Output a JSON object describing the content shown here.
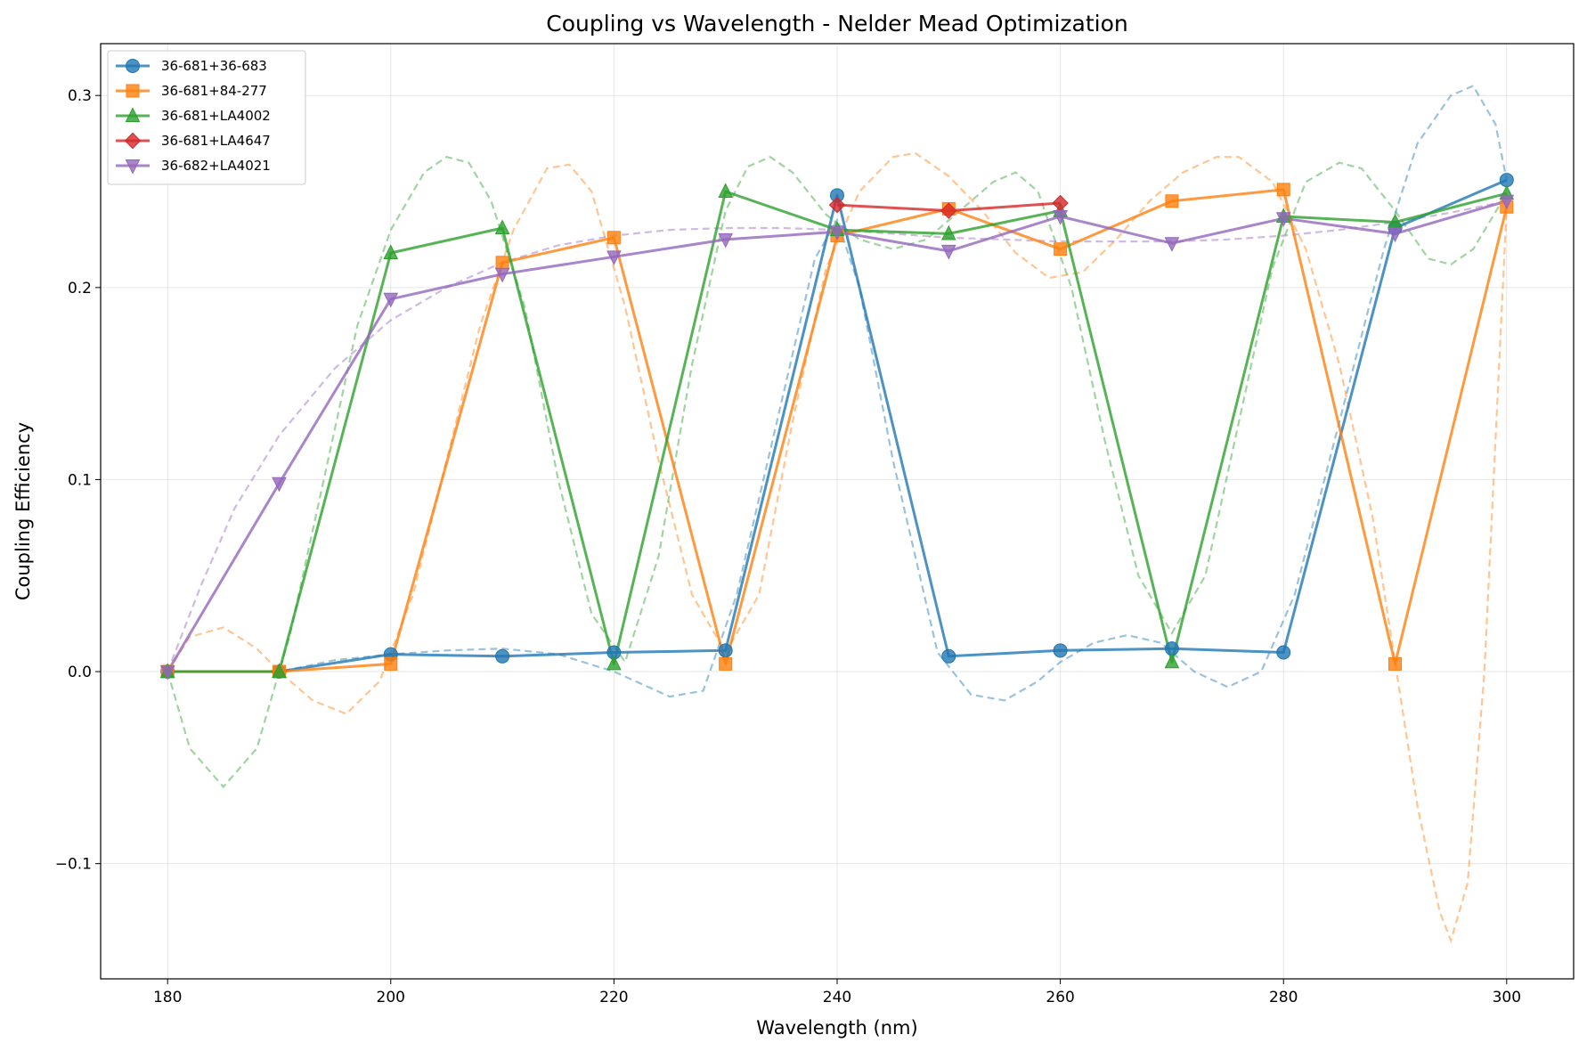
{
  "chart_data": {
    "type": "line",
    "title": "Coupling vs Wavelength - Nelder Mead Optimization",
    "xlabel": "Wavelength (nm)",
    "ylabel": "Coupling Efficiency",
    "xlim": [
      174,
      306
    ],
    "ylim": [
      -0.16,
      0.327
    ],
    "xticks": [
      180,
      200,
      220,
      240,
      260,
      280,
      300
    ],
    "yticks": [
      -0.1,
      0.0,
      0.1,
      0.2,
      0.3
    ],
    "ytick_labels": [
      "−0.1",
      "0.0",
      "0.1",
      "0.2",
      "0.3"
    ],
    "grid": true,
    "legend_position": "top-left",
    "series": [
      {
        "name": "36-681+36-683",
        "color": "#1f77b4",
        "marker": "circle",
        "x": [
          180,
          190,
          200,
          210,
          220,
          230,
          240,
          250,
          260,
          270,
          280,
          290,
          300
        ],
        "values": [
          0.0,
          0.0,
          0.009,
          0.008,
          0.01,
          0.011,
          0.248,
          0.008,
          0.011,
          0.012,
          0.01,
          0.231,
          0.256
        ],
        "fit": [
          [
            180,
            0.0
          ],
          [
            190,
            0.0
          ],
          [
            195,
            0.006
          ],
          [
            200,
            0.009
          ],
          [
            205,
            0.011
          ],
          [
            210,
            0.012
          ],
          [
            215,
            0.009
          ],
          [
            220,
            0.0
          ],
          [
            225,
            -0.013
          ],
          [
            228,
            -0.01
          ],
          [
            231,
            0.04
          ],
          [
            235,
            0.14
          ],
          [
            238,
            0.215
          ],
          [
            240,
            0.235
          ],
          [
            242,
            0.2
          ],
          [
            245,
            0.11
          ],
          [
            249,
            0.01
          ],
          [
            252,
            -0.012
          ],
          [
            255,
            -0.015
          ],
          [
            258,
            -0.005
          ],
          [
            260,
            0.005
          ],
          [
            263,
            0.015
          ],
          [
            266,
            0.019
          ],
          [
            269,
            0.015
          ],
          [
            272,
            0.0
          ],
          [
            275,
            -0.008
          ],
          [
            278,
            0.0
          ],
          [
            281,
            0.04
          ],
          [
            285,
            0.13
          ],
          [
            289,
            0.22
          ],
          [
            292,
            0.275
          ],
          [
            295,
            0.3
          ],
          [
            297,
            0.305
          ],
          [
            299,
            0.285
          ],
          [
            300,
            0.256
          ]
        ]
      },
      {
        "name": "36-681+84-277",
        "color": "#ff7f0e",
        "marker": "square",
        "x": [
          180,
          190,
          200,
          210,
          220,
          230,
          240,
          250,
          260,
          270,
          280,
          290,
          300
        ],
        "values": [
          0.0,
          0.0,
          0.004,
          0.213,
          0.226,
          0.004,
          0.227,
          0.241,
          0.22,
          0.245,
          0.251,
          0.004,
          0.242
        ],
        "fit": [
          [
            180,
            0.0
          ],
          [
            182,
            0.018
          ],
          [
            185,
            0.023
          ],
          [
            188,
            0.012
          ],
          [
            190,
            0.0
          ],
          [
            193,
            -0.015
          ],
          [
            196,
            -0.022
          ],
          [
            199,
            -0.005
          ],
          [
            202,
            0.04
          ],
          [
            205,
            0.11
          ],
          [
            208,
            0.18
          ],
          [
            211,
            0.23
          ],
          [
            214,
            0.262
          ],
          [
            216,
            0.264
          ],
          [
            218,
            0.25
          ],
          [
            221,
            0.19
          ],
          [
            224,
            0.11
          ],
          [
            227,
            0.04
          ],
          [
            230,
            0.01
          ],
          [
            233,
            0.04
          ],
          [
            236,
            0.13
          ],
          [
            239,
            0.21
          ],
          [
            242,
            0.25
          ],
          [
            245,
            0.268
          ],
          [
            247,
            0.27
          ],
          [
            250,
            0.258
          ],
          [
            253,
            0.24
          ],
          [
            256,
            0.218
          ],
          [
            259,
            0.205
          ],
          [
            262,
            0.208
          ],
          [
            265,
            0.225
          ],
          [
            268,
            0.245
          ],
          [
            271,
            0.26
          ],
          [
            274,
            0.268
          ],
          [
            276,
            0.268
          ],
          [
            279,
            0.255
          ],
          [
            282,
            0.22
          ],
          [
            285,
            0.16
          ],
          [
            288,
            0.08
          ],
          [
            290,
            0.005
          ],
          [
            292,
            -0.07
          ],
          [
            294,
            -0.125
          ],
          [
            295,
            -0.14
          ],
          [
            296.5,
            -0.11
          ],
          [
            298,
            0.0
          ],
          [
            300,
            0.242
          ]
        ]
      },
      {
        "name": "36-681+LA4002",
        "color": "#2ca02c",
        "marker": "triangle-up",
        "x": [
          180,
          190,
          200,
          210,
          220,
          230,
          240,
          250,
          260,
          270,
          280,
          290,
          300
        ],
        "values": [
          0.0,
          0.0,
          0.218,
          0.231,
          0.004,
          0.25,
          0.23,
          0.228,
          0.24,
          0.005,
          0.237,
          0.234,
          0.249
        ],
        "fit": [
          [
            180,
            0.0
          ],
          [
            182,
            -0.04
          ],
          [
            185,
            -0.06
          ],
          [
            188,
            -0.04
          ],
          [
            191,
            0.02
          ],
          [
            194,
            0.1
          ],
          [
            197,
            0.18
          ],
          [
            200,
            0.23
          ],
          [
            203,
            0.26
          ],
          [
            205,
            0.268
          ],
          [
            207,
            0.265
          ],
          [
            209,
            0.245
          ],
          [
            212,
            0.19
          ],
          [
            215,
            0.1
          ],
          [
            218,
            0.03
          ],
          [
            221,
            0.005
          ],
          [
            224,
            0.06
          ],
          [
            227,
            0.16
          ],
          [
            230,
            0.24
          ],
          [
            232,
            0.263
          ],
          [
            234,
            0.268
          ],
          [
            236,
            0.26
          ],
          [
            239,
            0.238
          ],
          [
            242,
            0.225
          ],
          [
            245,
            0.22
          ],
          [
            248,
            0.225
          ],
          [
            251,
            0.24
          ],
          [
            254,
            0.255
          ],
          [
            256,
            0.26
          ],
          [
            258,
            0.25
          ],
          [
            261,
            0.2
          ],
          [
            264,
            0.12
          ],
          [
            267,
            0.05
          ],
          [
            270,
            0.02
          ],
          [
            273,
            0.05
          ],
          [
            276,
            0.13
          ],
          [
            279,
            0.21
          ],
          [
            282,
            0.255
          ],
          [
            285,
            0.265
          ],
          [
            287,
            0.262
          ],
          [
            290,
            0.24
          ],
          [
            293,
            0.215
          ],
          [
            295,
            0.212
          ],
          [
            297,
            0.22
          ],
          [
            300,
            0.249
          ]
        ]
      },
      {
        "name": "36-681+LA4647",
        "color": "#d62728",
        "marker": "diamond",
        "x": [
          240,
          250,
          260
        ],
        "values": [
          0.243,
          0.24,
          0.244
        ],
        "fit": []
      },
      {
        "name": "36-682+LA4021",
        "color": "#9467bd",
        "marker": "triangle-down",
        "x": [
          180,
          190,
          200,
          210,
          220,
          230,
          240,
          250,
          260,
          270,
          280,
          290,
          300
        ],
        "values": [
          0.0,
          0.098,
          0.194,
          0.207,
          0.216,
          0.225,
          0.229,
          0.219,
          0.237,
          0.223,
          0.236,
          0.228,
          0.245
        ],
        "fit": [
          [
            180,
            0.0
          ],
          [
            183,
            0.045
          ],
          [
            186,
            0.085
          ],
          [
            190,
            0.123
          ],
          [
            195,
            0.158
          ],
          [
            200,
            0.183
          ],
          [
            205,
            0.2
          ],
          [
            210,
            0.213
          ],
          [
            215,
            0.222
          ],
          [
            220,
            0.227
          ],
          [
            225,
            0.23
          ],
          [
            230,
            0.231
          ],
          [
            235,
            0.231
          ],
          [
            240,
            0.23
          ],
          [
            245,
            0.228
          ],
          [
            250,
            0.226
          ],
          [
            255,
            0.225
          ],
          [
            260,
            0.224
          ],
          [
            265,
            0.224
          ],
          [
            270,
            0.224
          ],
          [
            275,
            0.225
          ],
          [
            280,
            0.227
          ],
          [
            285,
            0.23
          ],
          [
            290,
            0.234
          ],
          [
            295,
            0.239
          ],
          [
            300,
            0.245
          ]
        ]
      }
    ]
  }
}
